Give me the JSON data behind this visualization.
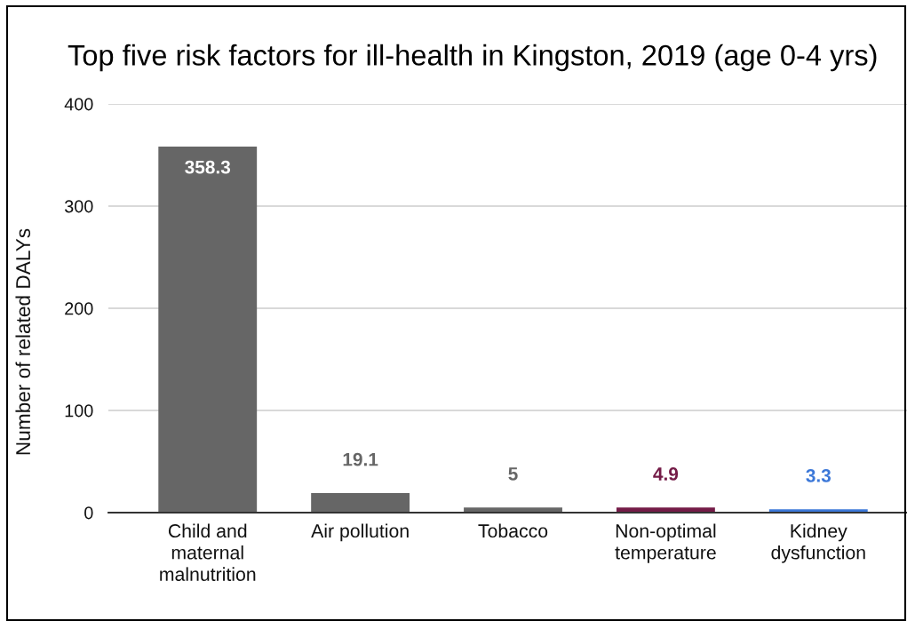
{
  "chart_data": {
    "type": "bar",
    "title": "Top five risk factors for ill-health in Kingston, 2019 (age 0-4 yrs)",
    "ylabel": "Number of related DALYs",
    "categories": [
      "Child and maternal malnutrition",
      "Air pollution",
      "Tobacco",
      "Non-optimal temperature",
      "Kidney dysfunction"
    ],
    "values": [
      358.3,
      19.1,
      5,
      4.9,
      3.3
    ],
    "colors": [
      "#666666",
      "#666666",
      "#666666",
      "#741b47",
      "#3c78d8"
    ],
    "ylim": [
      0,
      400
    ],
    "yticks": [
      0,
      100,
      200,
      300,
      400
    ],
    "grid": "y",
    "data_labels": true
  }
}
